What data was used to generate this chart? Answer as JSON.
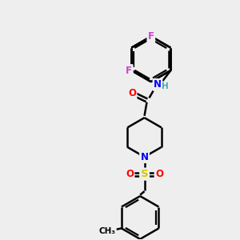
{
  "bg_color": "#eeeeee",
  "atom_colors": {
    "C": "#000000",
    "N": "#0000ff",
    "O": "#ff0000",
    "F": "#cc44cc",
    "S": "#cccc00",
    "H": "#44aaaa"
  },
  "bond_color": "#000000",
  "bond_width": 1.8,
  "dbo": 0.08,
  "font_size": 8.5,
  "fig_size": [
    3.0,
    3.0
  ],
  "dpi": 100
}
